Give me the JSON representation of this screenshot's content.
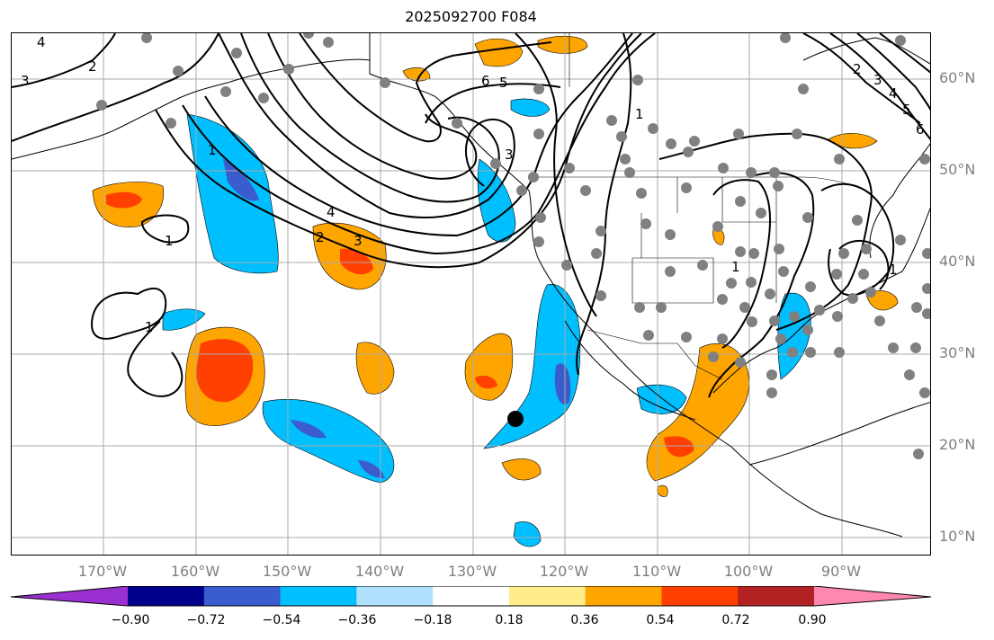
{
  "title": "2025092700 F084",
  "lat_labels": [
    "60°N",
    "50°N",
    "40°N",
    "30°N",
    "20°N",
    "10°N"
  ],
  "lon_labels": [
    "170°W",
    "160°W",
    "150°W",
    "140°W",
    "130°W",
    "120°W",
    "110°W",
    "100°W",
    "90°W"
  ],
  "colorbar": {
    "ticks": [
      "−0.90",
      "−0.72",
      "−0.54",
      "−0.36",
      "−0.18",
      "0.18",
      "0.36",
      "0.54",
      "0.72",
      "0.90"
    ],
    "colors": [
      "#9b30d0",
      "#00008b",
      "#3a5ccc",
      "#00bfff",
      "#b0e2ff",
      "#ffffff",
      "#ffec8b",
      "#ffa500",
      "#ff4000",
      "#b22222",
      "#ff88b0"
    ]
  },
  "contour_labels": [
    "1",
    "2",
    "3",
    "4",
    "5",
    "6",
    "1",
    "2",
    "3",
    "4",
    "1",
    "1",
    "1",
    "1",
    "3",
    "2",
    "3",
    "4",
    "5",
    "6"
  ],
  "colors": {
    "grid": "#a9a9a9",
    "station": "#808080",
    "contour": "#000000"
  }
}
